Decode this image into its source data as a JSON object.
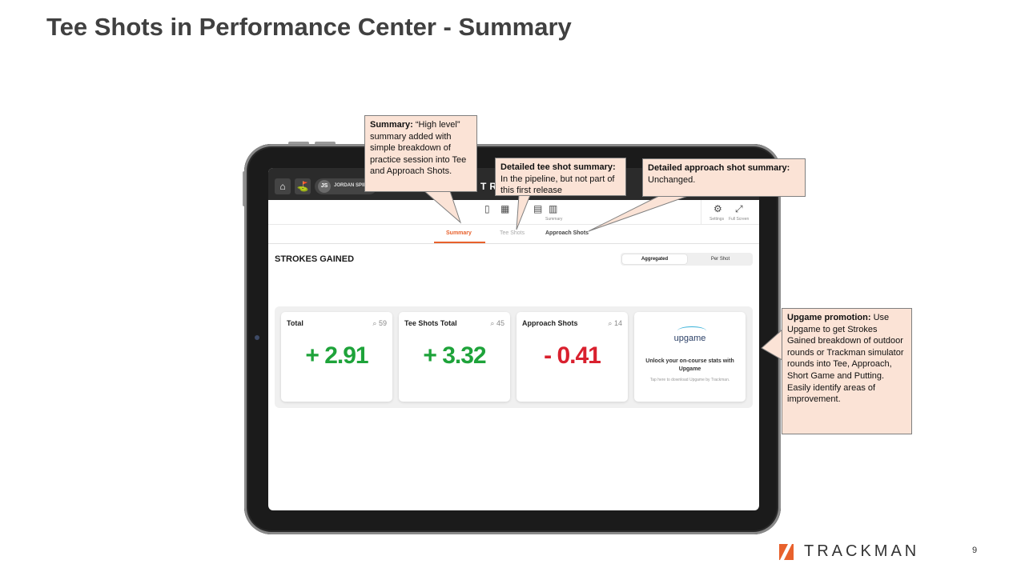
{
  "slide": {
    "title": "Tee Shots in Performance Center - Summary",
    "page_number": "9",
    "footer_brand": "TRACKMAN"
  },
  "app": {
    "header": {
      "user_initials": "JS",
      "user_name": "JORDAN SPIE",
      "brand": "TR"
    },
    "toolbar": {
      "summary_label": "Summary",
      "settings_label": "Settings",
      "fullscreen_label": "Full Screen"
    },
    "tabs": [
      {
        "label": "Summary",
        "active": true
      },
      {
        "label": "Tee Shots",
        "active": false
      },
      {
        "label": "Approach Shots",
        "active": false
      }
    ],
    "section_title": "STROKES GAINED",
    "toggle": {
      "aggregated": "Aggregated",
      "per_shot": "Per Shot",
      "selected": "Aggregated"
    },
    "cards": [
      {
        "label": "Total",
        "count": "59",
        "value": "+ 2.91",
        "color": "#1ea33a"
      },
      {
        "label": "Tee Shots Total",
        "count": "45",
        "value": "+ 3.32",
        "color": "#1ea33a"
      },
      {
        "label": "Approach Shots",
        "count": "14",
        "value": "- 0.41",
        "color": "#d9202e"
      }
    ],
    "upgame_card": {
      "logo": "upgame",
      "headline": "Unlock your on-course stats with Upgame",
      "subtext": "Tap here to download Upgame by Trackman."
    }
  },
  "callouts": {
    "summary": {
      "heading": "Summary:",
      "body": "“High level” summary added with simple breakdown of practice session into Tee and Approach Shots."
    },
    "tee_detail": {
      "heading": "Detailed tee shot summary:",
      "body": "In the pipeline, but not part of this first release"
    },
    "approach_detail": {
      "heading": "Detailed approach shot summary:",
      "body": "Unchanged."
    },
    "upgame": {
      "heading": "Upgame promotion:",
      "body": "Use Upgame to get Strokes Gained breakdown of outdoor rounds or Trackman simulator rounds into Tee, Approach, Short Game and Putting. Easily identify areas of improvement."
    }
  },
  "colors": {
    "accent": "#e8612c",
    "positive": "#1ea33a",
    "negative": "#d9202e",
    "callout_fill": "#fbe3d6"
  }
}
